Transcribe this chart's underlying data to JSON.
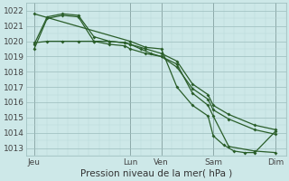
{
  "xlabel": "Pression niveau de la mer( hPa )",
  "ylim": [
    1012.5,
    1022.5
  ],
  "xlim": [
    0,
    100
  ],
  "yticks": [
    1013,
    1014,
    1015,
    1016,
    1017,
    1018,
    1019,
    1020,
    1021,
    1022
  ],
  "xtick_positions": [
    3,
    40,
    52,
    72,
    96
  ],
  "xtick_labels": [
    "Jeu",
    "Lun",
    "Ven",
    "Sam",
    "Dim"
  ],
  "bg_color": "#cde8e8",
  "grid_color_minor": "#b8d8d8",
  "line_color": "#2a5e2a",
  "vline_positions": [
    3,
    40,
    52,
    72,
    96
  ],
  "series1_x": [
    3,
    8,
    14,
    20,
    26,
    32,
    38,
    40,
    46,
    52,
    58,
    64,
    70,
    72,
    78,
    88,
    96
  ],
  "series1_y": [
    1019.8,
    1021.6,
    1021.8,
    1021.7,
    1020.3,
    1020.0,
    1019.9,
    1019.8,
    1019.5,
    1019.2,
    1018.7,
    1017.2,
    1016.5,
    1015.8,
    1015.2,
    1014.5,
    1014.2
  ],
  "series2_x": [
    3,
    8,
    14,
    20,
    26,
    32,
    38,
    40,
    46,
    52,
    58,
    64,
    70,
    72,
    78,
    88,
    96
  ],
  "series2_y": [
    1019.5,
    1021.5,
    1021.7,
    1021.6,
    1020.0,
    1019.8,
    1019.7,
    1019.5,
    1019.2,
    1019.0,
    1018.3,
    1016.9,
    1016.2,
    1015.5,
    1014.9,
    1014.2,
    1013.9
  ],
  "series3_x": [
    3,
    8,
    14,
    20,
    26,
    32,
    38,
    40,
    44,
    48,
    52,
    58,
    64,
    70,
    72,
    78,
    88,
    96
  ],
  "series3_y": [
    1019.9,
    1020.0,
    1020.0,
    1020.0,
    1020.0,
    1020.0,
    1019.9,
    1019.8,
    1019.5,
    1019.2,
    1019.0,
    1018.5,
    1016.6,
    1015.8,
    1015.1,
    1013.1,
    1012.8,
    1012.7
  ],
  "series4_x": [
    3,
    40,
    46,
    52,
    58,
    64,
    70,
    72,
    76,
    80,
    84,
    88,
    96
  ],
  "series4_y": [
    1021.8,
    1020.0,
    1019.6,
    1019.5,
    1017.0,
    1015.8,
    1015.1,
    1013.8,
    1013.2,
    1012.8,
    1012.7,
    1012.7,
    1014.1
  ],
  "marker": "D",
  "marker_size": 2.0,
  "line_width": 0.9
}
